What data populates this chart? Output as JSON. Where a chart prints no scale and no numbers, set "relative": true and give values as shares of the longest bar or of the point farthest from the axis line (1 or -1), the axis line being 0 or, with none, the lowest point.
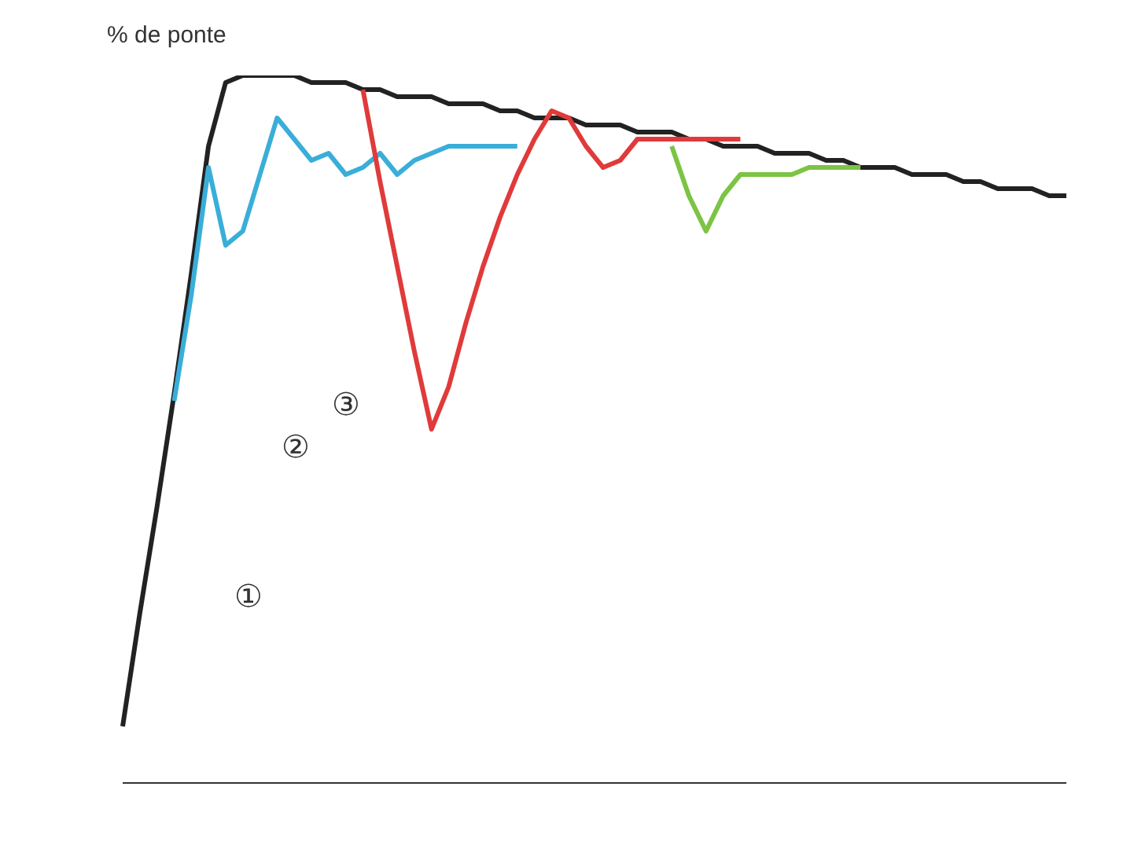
{
  "chart_data": {
    "type": "line",
    "relative": true,
    "ylabel": "% de ponte",
    "marker": "none",
    "line_style": "solid",
    "categories": [
      null,
      null,
      null,
      null,
      null,
      null,
      null,
      null,
      null,
      null,
      null,
      null,
      null,
      null,
      null,
      null,
      null,
      null,
      null,
      null,
      null,
      null,
      null,
      null,
      null,
      null,
      null,
      null,
      null,
      null,
      null,
      null,
      null,
      null,
      null,
      null,
      null,
      null,
      null,
      null,
      null,
      null,
      null,
      null,
      null,
      null,
      null,
      null,
      null,
      null,
      null,
      null,
      null,
      null,
      null,
      null
    ],
    "series": [
      {
        "color": "#222222",
        "values": [
          0.08,
          0.24,
          0.39,
          0.55,
          0.72,
          0.9,
          0.99,
          1.0,
          1.0,
          1.0,
          1.0,
          0.99,
          0.99,
          0.99,
          0.98,
          0.98,
          0.97,
          0.97,
          0.97,
          0.96,
          0.96,
          0.96,
          0.95,
          0.95,
          0.94,
          0.94,
          0.94,
          0.93,
          0.93,
          0.93,
          0.92,
          0.92,
          0.92,
          0.91,
          0.91,
          0.9,
          0.9,
          0.9,
          0.89,
          0.89,
          0.89,
          0.88,
          0.88,
          0.87,
          0.87,
          0.87,
          0.86,
          0.86,
          0.86,
          0.85,
          0.85,
          0.84,
          0.84,
          0.84,
          0.83,
          0.83
        ]
      },
      {
        "color": "#3aaed8",
        "values": [
          null,
          null,
          null,
          0.54,
          0.69,
          0.87,
          0.76,
          0.78,
          0.86,
          0.94,
          0.91,
          0.88,
          0.89,
          0.86,
          0.87,
          0.89,
          0.86,
          0.88,
          0.89,
          0.9,
          0.9,
          0.9,
          0.9,
          0.9,
          null,
          null,
          null,
          null,
          null,
          null,
          null,
          null,
          null,
          null,
          null,
          null,
          null,
          null,
          null,
          null,
          null,
          null,
          null,
          null,
          null,
          null,
          null,
          null,
          null,
          null,
          null,
          null,
          null,
          null,
          null,
          null
        ]
      },
      {
        "color": "#e03a3a",
        "values": [
          null,
          null,
          null,
          null,
          null,
          null,
          null,
          null,
          null,
          null,
          null,
          null,
          null,
          null,
          0.98,
          0.85,
          0.73,
          0.61,
          0.5,
          0.56,
          0.65,
          0.73,
          0.8,
          0.86,
          0.91,
          0.95,
          0.94,
          0.9,
          0.87,
          0.88,
          0.91,
          0.91,
          0.91,
          0.91,
          0.91,
          0.91,
          0.91,
          null,
          null,
          null,
          null,
          null,
          null,
          null,
          null,
          null,
          null,
          null,
          null,
          null,
          null,
          null,
          null,
          null,
          null,
          null
        ]
      },
      {
        "color": "#7cc444",
        "values": [
          null,
          null,
          null,
          null,
          null,
          null,
          null,
          null,
          null,
          null,
          null,
          null,
          null,
          null,
          null,
          null,
          null,
          null,
          null,
          null,
          null,
          null,
          null,
          null,
          null,
          null,
          null,
          null,
          null,
          null,
          null,
          null,
          0.9,
          0.83,
          0.78,
          0.83,
          0.86,
          0.86,
          0.86,
          0.86,
          0.87,
          0.87,
          0.87,
          0.87,
          null,
          null,
          null,
          null,
          null,
          null,
          null,
          null,
          null,
          null,
          null,
          null
        ]
      }
    ],
    "annotations": [
      "①",
      "②",
      "③"
    ]
  }
}
